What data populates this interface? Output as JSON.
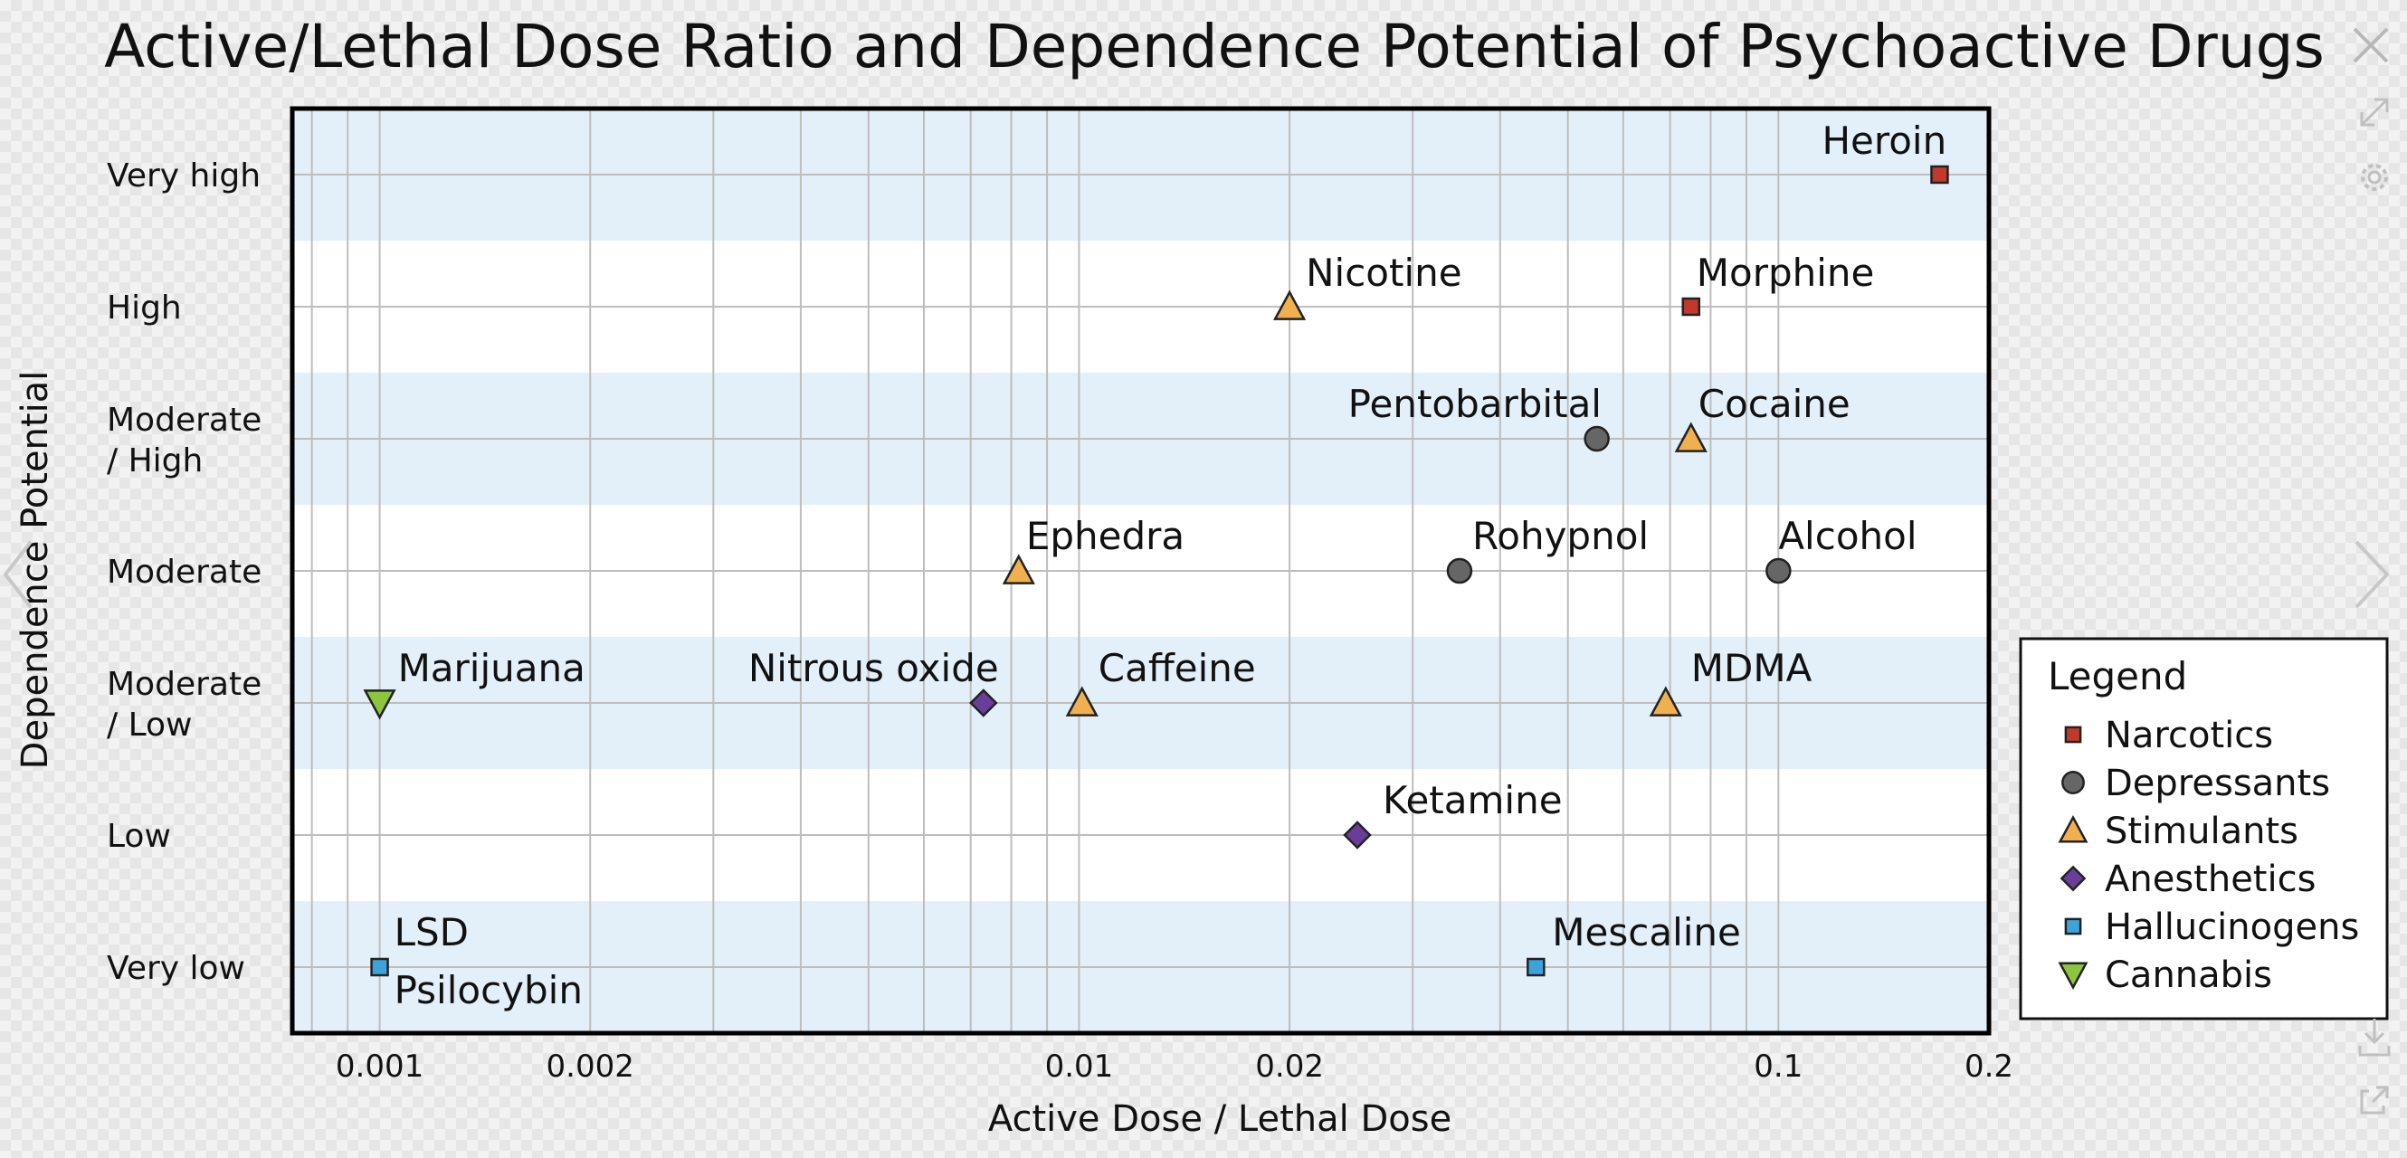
{
  "chart_data": {
    "type": "scatter",
    "title": "Active/Lethal Dose Ratio and Dependence Potential of Psychoactive Drugs",
    "xlabel": "Active Dose / Lethal Dose",
    "ylabel": "Dependence Potential",
    "x_scale": "log",
    "xlim": [
      0.00075,
      0.2
    ],
    "x_ticks": [
      {
        "value": 0.001,
        "label": "0.001"
      },
      {
        "value": 0.002,
        "label": "0.002"
      },
      {
        "value": 0.01,
        "label": "0.01"
      },
      {
        "value": 0.02,
        "label": "0.02"
      },
      {
        "value": 0.1,
        "label": "0.1"
      },
      {
        "value": 0.2,
        "label": "0.2"
      }
    ],
    "y_categories": [
      {
        "level": 0,
        "label": "Very low"
      },
      {
        "level": 1,
        "label": "Low"
      },
      {
        "level": 2,
        "label": "Moderate\n/ Low"
      },
      {
        "level": 3,
        "label": "Moderate"
      },
      {
        "level": 4,
        "label": "Moderate\n/ High"
      },
      {
        "level": 5,
        "label": "High"
      },
      {
        "level": 6,
        "label": "Very high"
      }
    ],
    "grid": true,
    "legend": {
      "title": "Legend",
      "placement": "right"
    },
    "series": [
      {
        "name": "Narcotics",
        "marker": "square",
        "color": "#c0392b",
        "points": [
          {
            "label": "Heroin",
            "x": 0.17,
            "y": 6
          },
          {
            "label": "Morphine",
            "x": 0.075,
            "y": 5
          }
        ]
      },
      {
        "name": "Depressants",
        "marker": "circle",
        "color": "#666666",
        "points": [
          {
            "label": "Pentobarbital",
            "x": 0.055,
            "y": 4
          },
          {
            "label": "Rohypnol",
            "x": 0.035,
            "y": 3
          },
          {
            "label": "Alcohol",
            "x": 0.1,
            "y": 3
          }
        ]
      },
      {
        "name": "Stimulants",
        "marker": "triangle-up",
        "color": "#f0b050",
        "points": [
          {
            "label": "Nicotine",
            "x": 0.02,
            "y": 5
          },
          {
            "label": "Cocaine",
            "x": 0.075,
            "y": 4
          },
          {
            "label": "Ephedra",
            "x": 0.0082,
            "y": 3
          },
          {
            "label": "Caffeine",
            "x": 0.0101,
            "y": 2
          },
          {
            "label": "MDMA",
            "x": 0.069,
            "y": 2
          }
        ]
      },
      {
        "name": "Anesthetics",
        "marker": "diamond",
        "color": "#6a3d9a",
        "points": [
          {
            "label": "Nitrous oxide",
            "x": 0.0073,
            "y": 2
          },
          {
            "label": "Ketamine",
            "x": 0.025,
            "y": 1
          }
        ]
      },
      {
        "name": "Hallucinogens",
        "marker": "square",
        "color": "#3ea3dc",
        "points": [
          {
            "label": "LSD",
            "x": 0.001,
            "y": 0
          },
          {
            "label": "Psilocybin",
            "x": 0.001,
            "y": 0
          },
          {
            "label": "Mescaline",
            "x": 0.045,
            "y": 0
          }
        ]
      },
      {
        "name": "Cannabis",
        "marker": "triangle-down",
        "color": "#8cc63f",
        "points": [
          {
            "label": "Marijuana",
            "x": 0.001,
            "y": 2
          }
        ]
      }
    ]
  },
  "viewer": {
    "icons": [
      "close-icon",
      "expand-icon",
      "gear-icon",
      "previous-arrow-icon",
      "next-arrow-icon",
      "download-icon",
      "share-icon"
    ]
  }
}
